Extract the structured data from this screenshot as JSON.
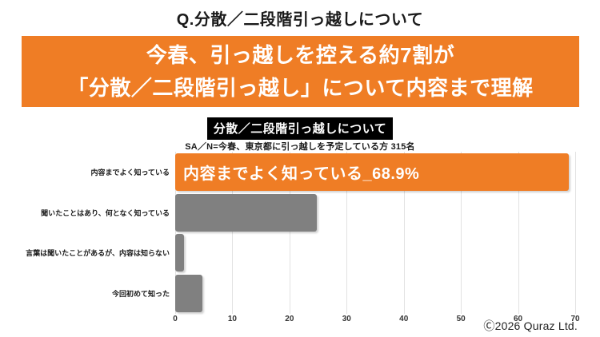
{
  "page": {
    "title": "Q.分散／二段階引っ越しについて"
  },
  "banner": {
    "line1": "今春、引っ越しを控える約7割が",
    "line2": "「分散／二段階引っ越し」について内容まで理解",
    "bg_color": "#EF7D25",
    "text_color": "#FFFFFF"
  },
  "section": {
    "label": "分散／二段階引っ越しについて",
    "subtitle": "SA／N=今春、東京都に引っ越しを予定している方 315名"
  },
  "chart_data": {
    "type": "bar",
    "orientation": "horizontal",
    "title": "分散／二段階引っ越しについて",
    "categories": [
      "内容までよく知っている",
      "聞いたことはあり、何となく知っている",
      "言葉は聞いたことがあるが、内容は知らない",
      "今回初めて知った"
    ],
    "values": [
      68.9,
      24.8,
      1.6,
      4.8
    ],
    "bar_labels": [
      "内容までよく知っている_68.9%",
      "",
      "",
      ""
    ],
    "bar_colors": [
      "#EF7D25",
      "#808080",
      "#808080",
      "#808080"
    ],
    "xlim": [
      0,
      70
    ],
    "x_ticks": [
      0,
      10,
      20,
      30,
      40,
      50,
      60,
      70
    ],
    "grid": true,
    "gridline_color": "#E2E2E2",
    "legend": false
  },
  "footer": {
    "copyright": "Ⓒ2026 Quraz Ltd."
  }
}
